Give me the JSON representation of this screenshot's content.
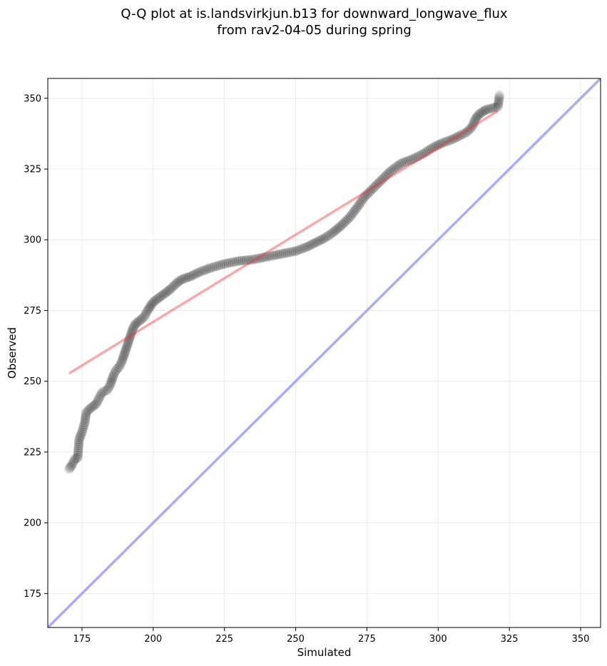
{
  "chart_data": {
    "type": "scatter",
    "title_lines": [
      "Q-Q plot at is.landsvirkjun.b13 for downward_longwave_flux",
      "from rav2-04-05 during spring"
    ],
    "xlabel": "Simulated",
    "ylabel": "Observed",
    "xlim": [
      163,
      357
    ],
    "ylim": [
      163,
      357
    ],
    "xticks": [
      "175",
      "200",
      "225",
      "250",
      "275",
      "300",
      "325",
      "350"
    ],
    "yticks": [
      "175",
      "200",
      "225",
      "250",
      "275",
      "300",
      "325",
      "350"
    ],
    "grid": true,
    "reference_line": {
      "color": "#aaaaff",
      "from": [
        163,
        163
      ],
      "to": [
        357,
        357
      ]
    },
    "fit_line": {
      "color": "#f4a4a4",
      "from": [
        170.5,
        252.8
      ],
      "to": [
        321,
        345.5
      ]
    },
    "points_color": "#000000",
    "points_anchor": [
      [
        170.5,
        219
      ],
      [
        171.5,
        220.5
      ],
      [
        172.5,
        222.5
      ],
      [
        173.5,
        223
      ],
      [
        174,
        229.5
      ],
      [
        175,
        232
      ],
      [
        176,
        235.5
      ],
      [
        176.5,
        239
      ],
      [
        178,
        240.5
      ],
      [
        180,
        242
      ],
      [
        181,
        244
      ],
      [
        182,
        246
      ],
      [
        184,
        247
      ],
      [
        185,
        249
      ],
      [
        186,
        252
      ],
      [
        187,
        254
      ],
      [
        188,
        255
      ],
      [
        189,
        257
      ],
      [
        190,
        260
      ],
      [
        191,
        263
      ],
      [
        192,
        266
      ],
      [
        193,
        269
      ],
      [
        194,
        270.5
      ],
      [
        196,
        272
      ],
      [
        197,
        273
      ],
      [
        198,
        275
      ],
      [
        199,
        276.5
      ],
      [
        200,
        278
      ],
      [
        202,
        279.5
      ],
      [
        204,
        281
      ],
      [
        206,
        282.5
      ],
      [
        208,
        284.5
      ],
      [
        210,
        286
      ],
      [
        213,
        287
      ],
      [
        216,
        288.5
      ],
      [
        220,
        290
      ],
      [
        225,
        291.5
      ],
      [
        230,
        292.5
      ],
      [
        235,
        293
      ],
      [
        240,
        294
      ],
      [
        245,
        295
      ],
      [
        250,
        296
      ],
      [
        254,
        297.5
      ],
      [
        257,
        299
      ],
      [
        260,
        300.5
      ],
      [
        263,
        302.5
      ],
      [
        266,
        305
      ],
      [
        269,
        308
      ],
      [
        272,
        312
      ],
      [
        274,
        315
      ],
      [
        277,
        318
      ],
      [
        280,
        321
      ],
      [
        283,
        324
      ],
      [
        287,
        327
      ],
      [
        291,
        328.5
      ],
      [
        295,
        330.5
      ],
      [
        298,
        332.5
      ],
      [
        301,
        334
      ],
      [
        305,
        335.5
      ],
      [
        308,
        337
      ],
      [
        310,
        338
      ],
      [
        312,
        340
      ],
      [
        313,
        342.5
      ],
      [
        314,
        344
      ],
      [
        316,
        345.5
      ],
      [
        317,
        346
      ],
      [
        321,
        347
      ],
      [
        321.5,
        351
      ]
    ]
  }
}
